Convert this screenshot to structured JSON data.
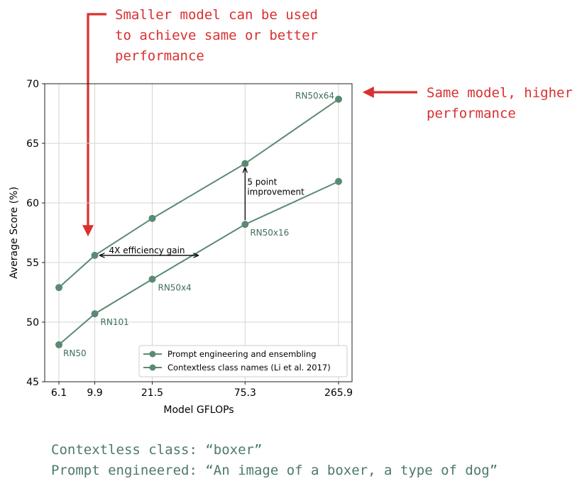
{
  "colors": {
    "series": "#5b8a73",
    "annotation_red": "#d93030",
    "annotation_green": "#4d7a66",
    "grid": "#d4d4d4"
  },
  "annotations": {
    "top_left": [
      "Smaller model can be used",
      "to achieve same or better",
      "performance"
    ],
    "right": [
      "Same model, higher",
      "performance"
    ],
    "bottom": [
      "Contextless class: “boxer”",
      "Prompt engineered: “An image of a boxer, a type of dog”"
    ]
  },
  "chart_data": {
    "type": "line",
    "xlabel": "Model GFLOPs",
    "ylabel": "Average Score (%)",
    "x_scale": "log",
    "x": [
      6.1,
      9.9,
      21.5,
      75.3,
      265.9
    ],
    "x_tick_labels": [
      "6.1",
      "9.9",
      "21.5",
      "75.3",
      "265.9"
    ],
    "ylim": [
      45,
      70
    ],
    "y_ticks": [
      45,
      50,
      55,
      60,
      65,
      70
    ],
    "grid": true,
    "legend_position": "lower-right",
    "series": [
      {
        "name": "Prompt engineering and ensembling",
        "values": [
          52.9,
          55.6,
          58.7,
          63.3,
          68.7
        ]
      },
      {
        "name": "Contextless class names (Li et al. 2017)",
        "values": [
          48.1,
          50.7,
          53.6,
          58.2,
          61.8
        ]
      }
    ],
    "point_labels": [
      "RN50",
      "RN101",
      "RN50x4",
      "RN50x16",
      "RN50x64"
    ],
    "in_plot_annotations": {
      "efficiency": "4X efficiency gain",
      "improvement": [
        "5 point",
        "improvement"
      ]
    }
  }
}
